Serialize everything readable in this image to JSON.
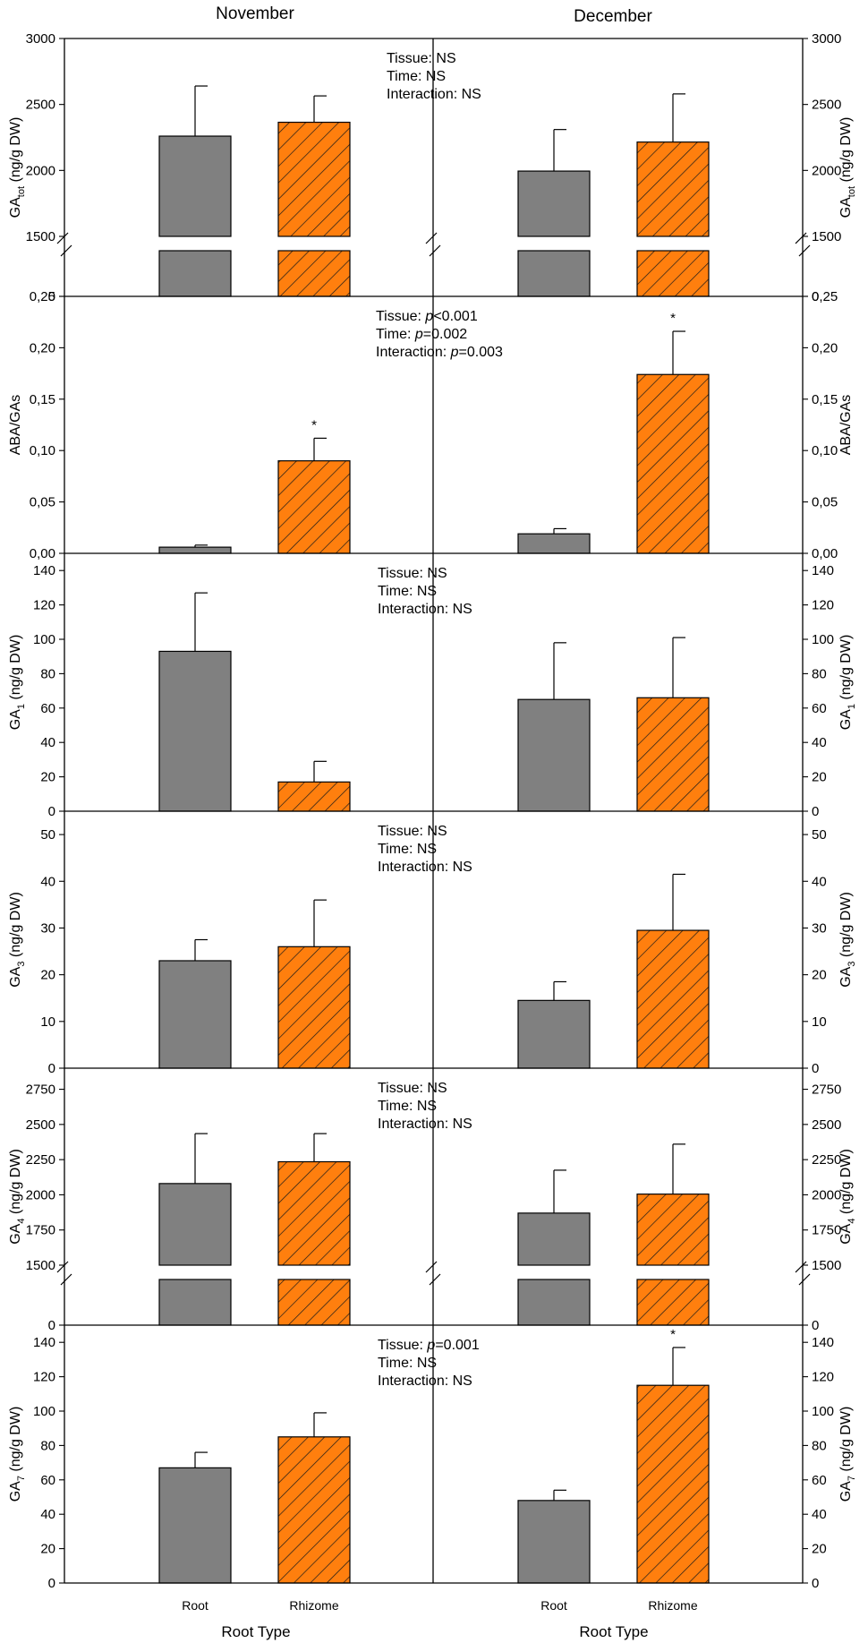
{
  "colors": {
    "root_fill": "#808080",
    "rhizome_fill": "#ff7f0e",
    "hatch": "#1a1a1a",
    "axis": "#000000"
  },
  "column_titles": [
    "November",
    "December"
  ],
  "x_title": "Root Type",
  "categories": [
    "Root",
    "Rhizome"
  ],
  "chart_data": [
    {
      "type": "bar",
      "id": "gatot",
      "ylabel": {
        "pre": "GA",
        "sub": "tot",
        "post": " (ng/g DW)"
      },
      "ylim": [
        1500,
        3000
      ],
      "yticks": [
        1500,
        2000,
        2500,
        3000
      ],
      "ytick_labels": [
        "1500",
        "2000",
        "2500",
        "3000"
      ],
      "axis_break": true,
      "stats": [
        {
          "label": "Tissue: ",
          "val": "NS"
        },
        {
          "label": "Time: ",
          "val": "NS"
        },
        {
          "label": "Interaction: ",
          "val": "NS"
        }
      ],
      "series": [
        {
          "name": "November",
          "categories": [
            "Root",
            "Rhizome"
          ],
          "values": [
            2260,
            2365
          ],
          "errors": [
            380,
            200
          ],
          "stars": [
            "",
            ""
          ]
        },
        {
          "name": "December",
          "categories": [
            "Root",
            "Rhizome"
          ],
          "values": [
            1995,
            2215
          ],
          "errors": [
            315,
            365
          ],
          "stars": [
            "",
            ""
          ]
        }
      ]
    },
    {
      "type": "bar",
      "id": "ababyga",
      "ylabel": {
        "pre": "ABA/GAs",
        "sub": "",
        "post": ""
      },
      "ylim": [
        0,
        0.25
      ],
      "yticks": [
        0,
        0.05,
        0.1,
        0.15,
        0.2,
        0.25
      ],
      "ytick_labels": [
        "0,00",
        "0,05",
        "0,10",
        "0,15",
        "0,20",
        "0,25"
      ],
      "axis_break": false,
      "stats": [
        {
          "label": "Tissue: ",
          "italic": "p",
          "val": "<0.001"
        },
        {
          "label": "Time: ",
          "italic": "p",
          "val": "=0.002"
        },
        {
          "label": "Interaction: ",
          "italic": "p",
          "val": "=0.003"
        }
      ],
      "series": [
        {
          "name": "November",
          "categories": [
            "Root",
            "Rhizome"
          ],
          "values": [
            0.006,
            0.09
          ],
          "errors": [
            0.002,
            0.022
          ],
          "stars": [
            "",
            "*"
          ]
        },
        {
          "name": "December",
          "categories": [
            "Root",
            "Rhizome"
          ],
          "values": [
            0.019,
            0.174
          ],
          "errors": [
            0.005,
            0.042
          ],
          "stars": [
            "",
            "*"
          ]
        }
      ]
    },
    {
      "type": "bar",
      "id": "ga1",
      "ylabel": {
        "pre": "GA",
        "sub": "1",
        "post": " (ng/g DW)"
      },
      "ylim": [
        0,
        150
      ],
      "yticks": [
        0,
        20,
        40,
        60,
        80,
        100,
        120,
        140
      ],
      "ytick_labels": [
        "0",
        "20",
        "40",
        "60",
        "80",
        "100",
        "120",
        "140"
      ],
      "axis_break": false,
      "stats": [
        {
          "label": "Tissue: ",
          "val": "NS"
        },
        {
          "label": "Time: ",
          "val": "NS"
        },
        {
          "label": "Interaction: ",
          "val": "NS"
        }
      ],
      "series": [
        {
          "name": "November",
          "categories": [
            "Root",
            "Rhizome"
          ],
          "values": [
            93,
            17
          ],
          "errors": [
            34,
            12
          ],
          "stars": [
            "",
            ""
          ]
        },
        {
          "name": "December",
          "categories": [
            "Root",
            "Rhizome"
          ],
          "values": [
            65,
            66
          ],
          "errors": [
            33,
            35
          ],
          "stars": [
            "",
            ""
          ]
        }
      ]
    },
    {
      "type": "bar",
      "id": "ga3",
      "ylabel": {
        "pre": "GA",
        "sub": "3",
        "post": " (ng/g DW)"
      },
      "ylim": [
        0,
        55
      ],
      "yticks": [
        0,
        10,
        20,
        30,
        40,
        50
      ],
      "ytick_labels": [
        "0",
        "10",
        "20",
        "30",
        "40",
        "50"
      ],
      "axis_break": false,
      "stats": [
        {
          "label": "Tissue: ",
          "val": "NS"
        },
        {
          "label": "Time: ",
          "val": "NS"
        },
        {
          "label": "Interaction: ",
          "val": "NS"
        }
      ],
      "series": [
        {
          "name": "November",
          "categories": [
            "Root",
            "Rhizome"
          ],
          "values": [
            23,
            26
          ],
          "errors": [
            4.5,
            10
          ],
          "stars": [
            "",
            ""
          ]
        },
        {
          "name": "December",
          "categories": [
            "Root",
            "Rhizome"
          ],
          "values": [
            14.5,
            29.5
          ],
          "errors": [
            4,
            12
          ],
          "stars": [
            "",
            ""
          ]
        }
      ]
    },
    {
      "type": "bar",
      "id": "ga4",
      "ylabel": {
        "pre": "GA",
        "sub": "4",
        "post": " (ng/g DW)"
      },
      "ylim": [
        1500,
        2900
      ],
      "yticks": [
        1500,
        1750,
        2000,
        2250,
        2500,
        2750
      ],
      "ytick_labels": [
        "1500",
        "1750",
        "2000",
        "2250",
        "2500",
        "2750"
      ],
      "axis_break": true,
      "stats": [
        {
          "label": "Tissue: ",
          "val": "NS"
        },
        {
          "label": "Time: ",
          "val": "NS"
        },
        {
          "label": "Interaction: ",
          "val": "NS"
        }
      ],
      "series": [
        {
          "name": "November",
          "categories": [
            "Root",
            "Rhizome"
          ],
          "values": [
            2080,
            2235
          ],
          "errors": [
            355,
            200
          ],
          "stars": [
            "",
            ""
          ]
        },
        {
          "name": "December",
          "categories": [
            "Root",
            "Rhizome"
          ],
          "values": [
            1870,
            2005
          ],
          "errors": [
            305,
            355
          ],
          "stars": [
            "",
            ""
          ]
        }
      ]
    },
    {
      "type": "bar",
      "id": "ga7",
      "ylabel": {
        "pre": "GA",
        "sub": "7",
        "post": " (ng/g DW)"
      },
      "ylim": [
        0,
        150
      ],
      "yticks": [
        0,
        20,
        40,
        60,
        80,
        100,
        120,
        140
      ],
      "ytick_labels": [
        "0",
        "20",
        "40",
        "60",
        "80",
        "100",
        "120",
        "140"
      ],
      "axis_break": false,
      "stats": [
        {
          "label": "Tissue: ",
          "italic": "p",
          "val": "=0.001"
        },
        {
          "label": "Time: ",
          "val": "NS"
        },
        {
          "label": "Interaction: ",
          "val": "NS"
        }
      ],
      "series": [
        {
          "name": "November",
          "categories": [
            "Root",
            "Rhizome"
          ],
          "values": [
            67,
            85
          ],
          "errors": [
            9,
            14
          ],
          "stars": [
            "",
            ""
          ]
        },
        {
          "name": "December",
          "categories": [
            "Root",
            "Rhizome"
          ],
          "values": [
            48,
            115
          ],
          "errors": [
            6,
            22
          ],
          "stars": [
            "",
            "*"
          ]
        }
      ]
    }
  ]
}
